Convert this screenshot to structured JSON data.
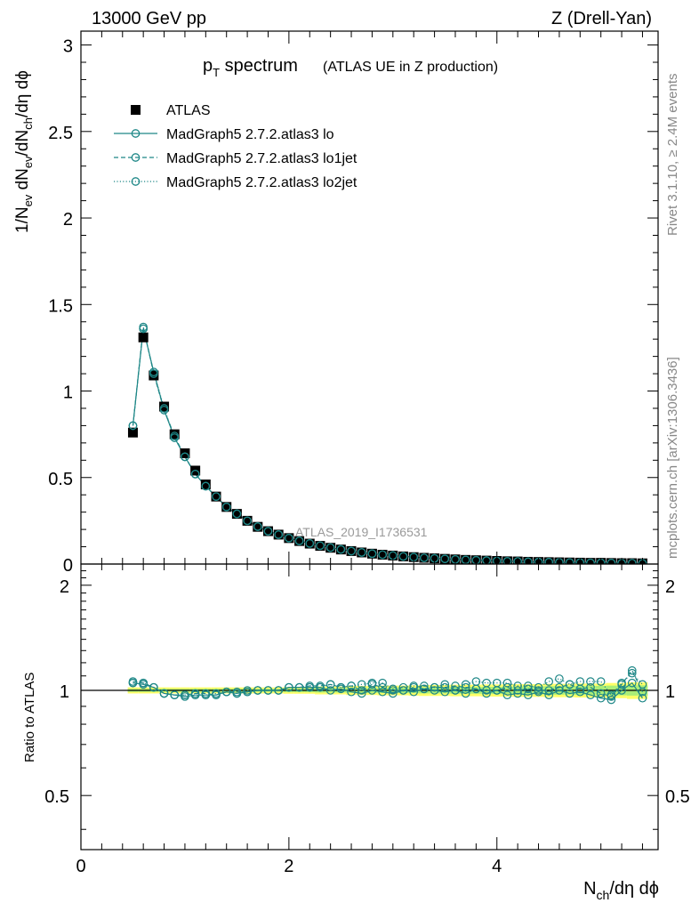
{
  "header": {
    "energy_label": "13000 GeV pp",
    "process_label": "Z (Drell-Yan)"
  },
  "side": {
    "rivet_label": "Rivet 3.1.10, ≥ 2.4M events",
    "mcplots_label": "mcplots.cern.ch [arXiv:1306.3436]"
  },
  "colors": {
    "data": "#000000",
    "mc": "#1e8787",
    "band_outer": "#ffff66",
    "band_inner": "#aaee77"
  },
  "chart_data": [
    {
      "type": "scatter",
      "title_main": "p",
      "title_sub": "T",
      "title_rest": " spectrum",
      "title_paren": "(ATLAS UE in Z production)",
      "ylabel": "1/N_ev dN_ev/dN_ch/dη dφ",
      "ylim": [
        0,
        3.08
      ],
      "xlim": [
        0,
        5.55
      ],
      "y_ticks": [
        "0",
        "0.5",
        "1",
        "1.5",
        "2",
        "2.5",
        "3"
      ],
      "y_tick_values": [
        0,
        0.5,
        1,
        1.5,
        2,
        2.5,
        3
      ],
      "analysis_label": "ATLAS_2019_I1736531",
      "x": [
        0.5,
        0.6,
        0.7,
        0.8,
        0.9,
        1.0,
        1.1,
        1.2,
        1.3,
        1.4,
        1.5,
        1.6,
        1.7,
        1.8,
        1.9,
        2.0,
        2.1,
        2.2,
        2.3,
        2.4,
        2.5,
        2.6,
        2.7,
        2.8,
        2.9,
        3.0,
        3.1,
        3.2,
        3.3,
        3.4,
        3.5,
        3.6,
        3.7,
        3.8,
        3.9,
        4.0,
        4.1,
        4.2,
        4.3,
        4.4,
        4.5,
        4.6,
        4.7,
        4.8,
        4.9,
        5.0,
        5.1,
        5.2,
        5.3,
        5.4
      ],
      "series": [
        {
          "name": "ATLAS",
          "style": "data",
          "values": [
            0.76,
            1.31,
            1.09,
            0.91,
            0.75,
            0.64,
            0.54,
            0.46,
            0.39,
            0.33,
            0.29,
            0.25,
            0.215,
            0.19,
            0.17,
            0.15,
            0.133,
            0.118,
            0.105,
            0.094,
            0.084,
            0.075,
            0.067,
            0.06,
            0.054,
            0.049,
            0.044,
            0.04,
            0.036,
            0.033,
            0.03,
            0.027,
            0.024,
            0.022,
            0.02,
            0.018,
            0.016,
            0.015,
            0.013,
            0.012,
            0.011,
            0.01,
            0.009,
            0.008,
            0.007,
            0.007,
            0.006,
            0.005,
            0.005,
            0.004
          ]
        },
        {
          "name": "MadGraph5 2.7.2.atlas3 lo",
          "style": "solid",
          "values": [
            0.8,
            1.36,
            1.11,
            0.89,
            0.73,
            0.62,
            0.52,
            0.45,
            0.39,
            0.33,
            0.29,
            0.25,
            0.216,
            0.19,
            0.17,
            0.15,
            0.134,
            0.119,
            0.106,
            0.095,
            0.084,
            0.075,
            0.067,
            0.06,
            0.054,
            0.049,
            0.044,
            0.04,
            0.036,
            0.033,
            0.03,
            0.027,
            0.024,
            0.022,
            0.02,
            0.018,
            0.016,
            0.015,
            0.013,
            0.012,
            0.011,
            0.01,
            0.009,
            0.008,
            0.007,
            0.007,
            0.006,
            0.005,
            0.005,
            0.004
          ]
        },
        {
          "name": "MadGraph5 2.7.2.atlas3 lo1jet",
          "style": "dashed",
          "values": [
            0.8,
            1.37,
            1.1,
            0.89,
            0.74,
            0.62,
            0.52,
            0.45,
            0.39,
            0.33,
            0.29,
            0.25,
            0.217,
            0.19,
            0.17,
            0.15,
            0.134,
            0.119,
            0.106,
            0.095,
            0.085,
            0.075,
            0.067,
            0.06,
            0.054,
            0.049,
            0.044,
            0.04,
            0.036,
            0.033,
            0.03,
            0.027,
            0.024,
            0.022,
            0.02,
            0.018,
            0.016,
            0.015,
            0.013,
            0.012,
            0.011,
            0.01,
            0.009,
            0.008,
            0.007,
            0.007,
            0.006,
            0.005,
            0.005,
            0.004
          ]
        },
        {
          "name": "MadGraph5 2.7.2.atlas3 lo2jet",
          "style": "dotted",
          "values": [
            0.8,
            1.36,
            1.11,
            0.9,
            0.73,
            0.62,
            0.52,
            0.45,
            0.39,
            0.33,
            0.29,
            0.25,
            0.216,
            0.19,
            0.17,
            0.15,
            0.134,
            0.119,
            0.106,
            0.095,
            0.085,
            0.075,
            0.067,
            0.06,
            0.054,
            0.049,
            0.044,
            0.04,
            0.036,
            0.033,
            0.03,
            0.027,
            0.024,
            0.022,
            0.02,
            0.018,
            0.016,
            0.015,
            0.013,
            0.012,
            0.011,
            0.01,
            0.009,
            0.008,
            0.007,
            0.007,
            0.006,
            0.005,
            0.005,
            0.004
          ]
        }
      ],
      "legend_position": "top-left",
      "grid": false
    },
    {
      "type": "scatter",
      "ylabel": "Ratio to ATLAS",
      "xlabel": "N_ch/dη dφ",
      "xlim": [
        0,
        5.55
      ],
      "ylim": [
        0.35,
        2.3
      ],
      "y_scale": "log",
      "x_ticks": [
        "0",
        "2",
        "4"
      ],
      "x_tick_values": [
        0,
        2,
        4
      ],
      "y_ticks": [
        "0.5",
        "1",
        "2"
      ],
      "y_tick_values": [
        0.5,
        1,
        2
      ],
      "x": [
        0.5,
        0.6,
        0.7,
        0.8,
        0.9,
        1.0,
        1.1,
        1.2,
        1.3,
        1.4,
        1.5,
        1.6,
        1.7,
        1.8,
        1.9,
        2.0,
        2.1,
        2.2,
        2.3,
        2.4,
        2.5,
        2.6,
        2.7,
        2.8,
        2.9,
        3.0,
        3.1,
        3.2,
        3.3,
        3.4,
        3.5,
        3.6,
        3.7,
        3.8,
        3.9,
        4.0,
        4.1,
        4.2,
        4.3,
        4.4,
        4.5,
        4.6,
        4.7,
        4.8,
        4.9,
        5.0,
        5.1,
        5.2,
        5.3,
        5.4
      ],
      "band_inner": [
        0.01,
        0.01,
        0.01,
        0.01,
        0.01,
        0.01,
        0.01,
        0.01,
        0.01,
        0.01,
        0.01,
        0.01,
        0.01,
        0.01,
        0.01,
        0.012,
        0.012,
        0.012,
        0.014,
        0.014,
        0.014,
        0.016,
        0.016,
        0.016,
        0.018,
        0.018,
        0.018,
        0.018,
        0.02,
        0.02,
        0.02,
        0.022,
        0.022,
        0.022,
        0.024,
        0.024,
        0.024,
        0.026,
        0.026,
        0.026,
        0.028,
        0.028,
        0.028,
        0.03,
        0.03,
        0.03,
        0.032,
        0.032,
        0.034,
        0.034
      ],
      "band_outer": [
        0.02,
        0.02,
        0.02,
        0.02,
        0.02,
        0.02,
        0.02,
        0.02,
        0.02,
        0.02,
        0.02,
        0.02,
        0.02,
        0.02,
        0.02,
        0.022,
        0.022,
        0.022,
        0.026,
        0.026,
        0.026,
        0.03,
        0.03,
        0.03,
        0.032,
        0.032,
        0.032,
        0.034,
        0.036,
        0.036,
        0.036,
        0.038,
        0.038,
        0.038,
        0.04,
        0.04,
        0.04,
        0.042,
        0.042,
        0.042,
        0.044,
        0.044,
        0.044,
        0.046,
        0.046,
        0.046,
        0.05,
        0.05,
        0.055,
        0.055
      ],
      "series": [
        {
          "name": "MadGraph5 2.7.2.atlas3 lo",
          "style": "solid",
          "values": [
            1.05,
            1.04,
            1.02,
            0.98,
            0.97,
            0.96,
            0.97,
            0.97,
            0.97,
            0.99,
            0.98,
            0.99,
            1.0,
            1.0,
            1.0,
            1.02,
            1.02,
            1.02,
            1.02,
            1.0,
            1.01,
            0.99,
            0.98,
            1.0,
            0.99,
            0.98,
            1.0,
            0.99,
            1.01,
            1.0,
            0.99,
            1.0,
            0.98,
            1.01,
            0.98,
            1.0,
            0.97,
            0.98,
            0.97,
            0.99,
            0.97,
            1.0,
            0.98,
            0.99,
            0.97,
            0.95,
            0.94,
            1.0,
            1.05,
            0.95
          ]
        },
        {
          "name": "MadGraph5 2.7.2.atlas3 lo1jet",
          "style": "dashed",
          "values": [
            1.06,
            1.05,
            1.02,
            0.98,
            0.97,
            0.97,
            0.98,
            0.98,
            0.97,
            0.99,
            0.99,
            0.99,
            1.0,
            1.0,
            1.0,
            1.02,
            1.02,
            1.03,
            1.03,
            1.04,
            1.02,
            1.03,
            1.0,
            1.04,
            1.02,
            1.0,
            1.0,
            1.02,
            1.03,
            1.02,
            1.02,
            1.03,
            1.02,
            1.01,
            1.0,
            1.0,
            1.02,
            1.0,
            1.01,
            1.0,
            1.0,
            1.02,
            1.04,
            1.01,
            1.02,
            0.98,
            0.96,
            1.04,
            1.14,
            0.99
          ]
        },
        {
          "name": "MadGraph5 2.7.2.atlas3 lo2jet",
          "style": "dotted",
          "values": [
            1.05,
            1.05,
            1.02,
            0.98,
            0.97,
            0.97,
            0.97,
            0.97,
            0.98,
            0.99,
            0.98,
            1.0,
            1.0,
            1.0,
            1.0,
            1.02,
            1.02,
            1.02,
            1.02,
            1.04,
            1.02,
            1.03,
            1.04,
            1.05,
            1.05,
            1.01,
            1.02,
            1.03,
            1.01,
            1.02,
            1.04,
            1.0,
            1.04,
            1.06,
            1.05,
            1.05,
            1.05,
            1.03,
            1.03,
            1.02,
            1.06,
            1.08,
            1.04,
            1.06,
            1.06,
            1.06,
            0.97,
            1.05,
            1.12,
            1.04
          ]
        }
      ],
      "grid": false
    }
  ]
}
